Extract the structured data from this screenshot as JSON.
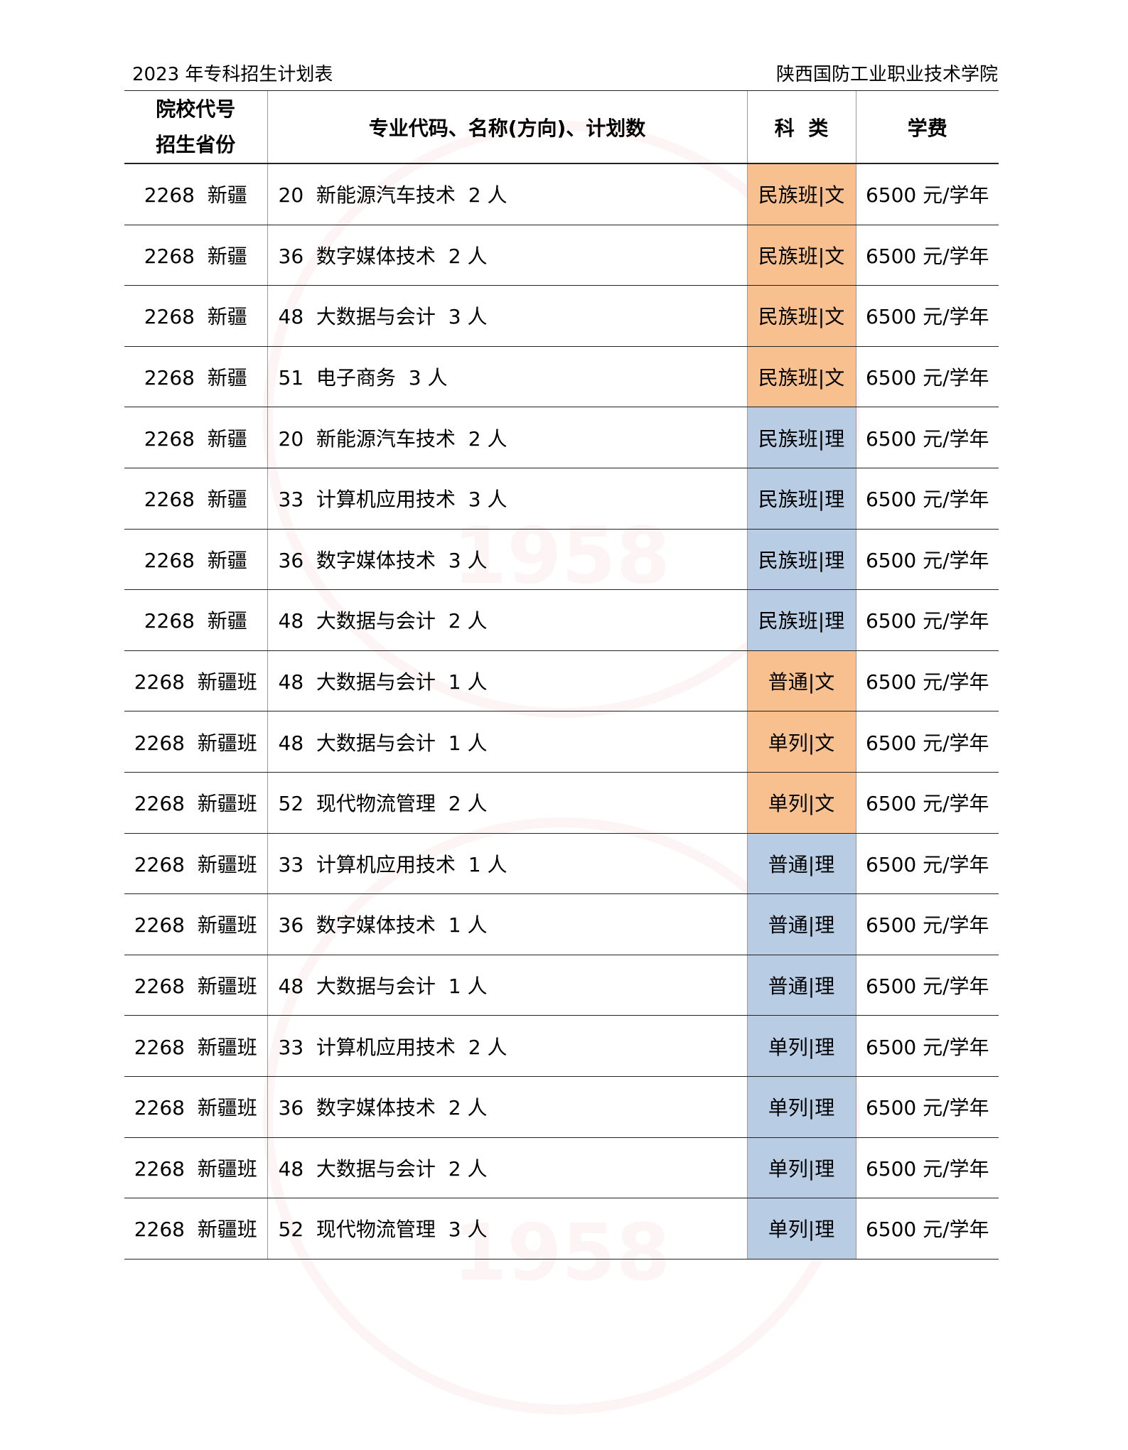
{
  "header": {
    "title": "2023 年专科招生计划表",
    "school": "陕西国防工业职业技术学院"
  },
  "watermark": {
    "year": "1958"
  },
  "colors": {
    "wen": "#f8bf8f",
    "li": "#b8cce4"
  },
  "columns": {
    "province_line1": "院校代号",
    "province_line2": "招生省份",
    "major": "专业代码、名称(方向)、计划数",
    "category": "科  类",
    "fee": "学费"
  },
  "rows": [
    {
      "province": "2268  新疆",
      "major": "20  新能源汽车技术  2 人",
      "category": "民族班|文",
      "type": "wen",
      "fee": "6500 元/学年"
    },
    {
      "province": "2268  新疆",
      "major": "36  数字媒体技术  2 人",
      "category": "民族班|文",
      "type": "wen",
      "fee": "6500 元/学年"
    },
    {
      "province": "2268  新疆",
      "major": "48  大数据与会计  3 人",
      "category": "民族班|文",
      "type": "wen",
      "fee": "6500 元/学年"
    },
    {
      "province": "2268  新疆",
      "major": "51  电子商务  3 人",
      "category": "民族班|文",
      "type": "wen",
      "fee": "6500 元/学年"
    },
    {
      "province": "2268  新疆",
      "major": "20  新能源汽车技术  2 人",
      "category": "民族班|理",
      "type": "li",
      "fee": "6500 元/学年"
    },
    {
      "province": "2268  新疆",
      "major": "33  计算机应用技术  3 人",
      "category": "民族班|理",
      "type": "li",
      "fee": "6500 元/学年"
    },
    {
      "province": "2268  新疆",
      "major": "36  数字媒体技术  3 人",
      "category": "民族班|理",
      "type": "li",
      "fee": "6500 元/学年"
    },
    {
      "province": "2268  新疆",
      "major": "48  大数据与会计  2 人",
      "category": "民族班|理",
      "type": "li",
      "fee": "6500 元/学年"
    },
    {
      "province": "2268  新疆班",
      "major": "48  大数据与会计  1 人",
      "category": "普通|文",
      "type": "wen",
      "fee": "6500 元/学年"
    },
    {
      "province": "2268  新疆班",
      "major": "48  大数据与会计  1 人",
      "category": "单列|文",
      "type": "wen",
      "fee": "6500 元/学年"
    },
    {
      "province": "2268  新疆班",
      "major": "52  现代物流管理  2 人",
      "category": "单列|文",
      "type": "wen",
      "fee": "6500 元/学年"
    },
    {
      "province": "2268  新疆班",
      "major": "33  计算机应用技术  1 人",
      "category": "普通|理",
      "type": "li",
      "fee": "6500 元/学年"
    },
    {
      "province": "2268  新疆班",
      "major": "36  数字媒体技术  1 人",
      "category": "普通|理",
      "type": "li",
      "fee": "6500 元/学年"
    },
    {
      "province": "2268  新疆班",
      "major": "48  大数据与会计  1 人",
      "category": "普通|理",
      "type": "li",
      "fee": "6500 元/学年"
    },
    {
      "province": "2268  新疆班",
      "major": "33  计算机应用技术  2 人",
      "category": "单列|理",
      "type": "li",
      "fee": "6500 元/学年"
    },
    {
      "province": "2268  新疆班",
      "major": "36  数字媒体技术  2 人",
      "category": "单列|理",
      "type": "li",
      "fee": "6500 元/学年"
    },
    {
      "province": "2268  新疆班",
      "major": "48  大数据与会计  2 人",
      "category": "单列|理",
      "type": "li",
      "fee": "6500 元/学年"
    },
    {
      "province": "2268  新疆班",
      "major": "52  现代物流管理  3 人",
      "category": "单列|理",
      "type": "li",
      "fee": "6500 元/学年"
    }
  ]
}
